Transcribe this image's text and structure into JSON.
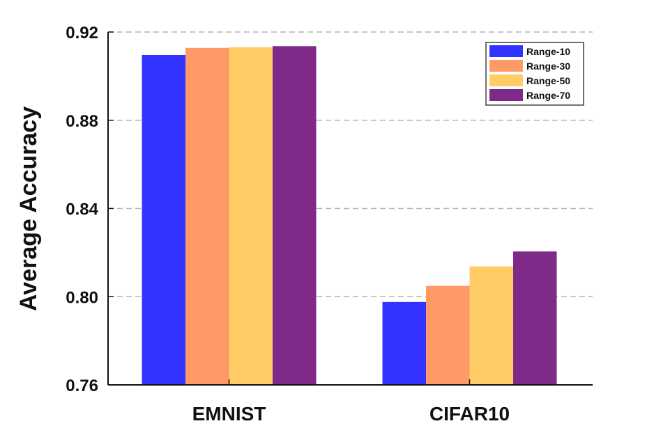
{
  "chart_data": {
    "type": "bar",
    "categories": [
      "EMNIST",
      "CIFAR10"
    ],
    "series": [
      {
        "name": "Range-10",
        "color": "#3333FF",
        "values": [
          0.9096,
          0.7976
        ]
      },
      {
        "name": "Range-30",
        "color": "#FF9966",
        "values": [
          0.9128,
          0.8049
        ]
      },
      {
        "name": "Range-50",
        "color": "#FFCC66",
        "values": [
          0.9131,
          0.8137
        ]
      },
      {
        "name": "Range-70",
        "color": "#7F2A88",
        "values": [
          0.9136,
          0.8205
        ]
      }
    ],
    "ylabel": "Average Accuracy",
    "xlabel": "",
    "ylim": [
      0.76,
      0.92
    ],
    "yticks": [
      "0.76",
      "0.80",
      "0.84",
      "0.88",
      "0.92"
    ],
    "grid": "horizontal dashed",
    "legend_position": "top-right"
  }
}
